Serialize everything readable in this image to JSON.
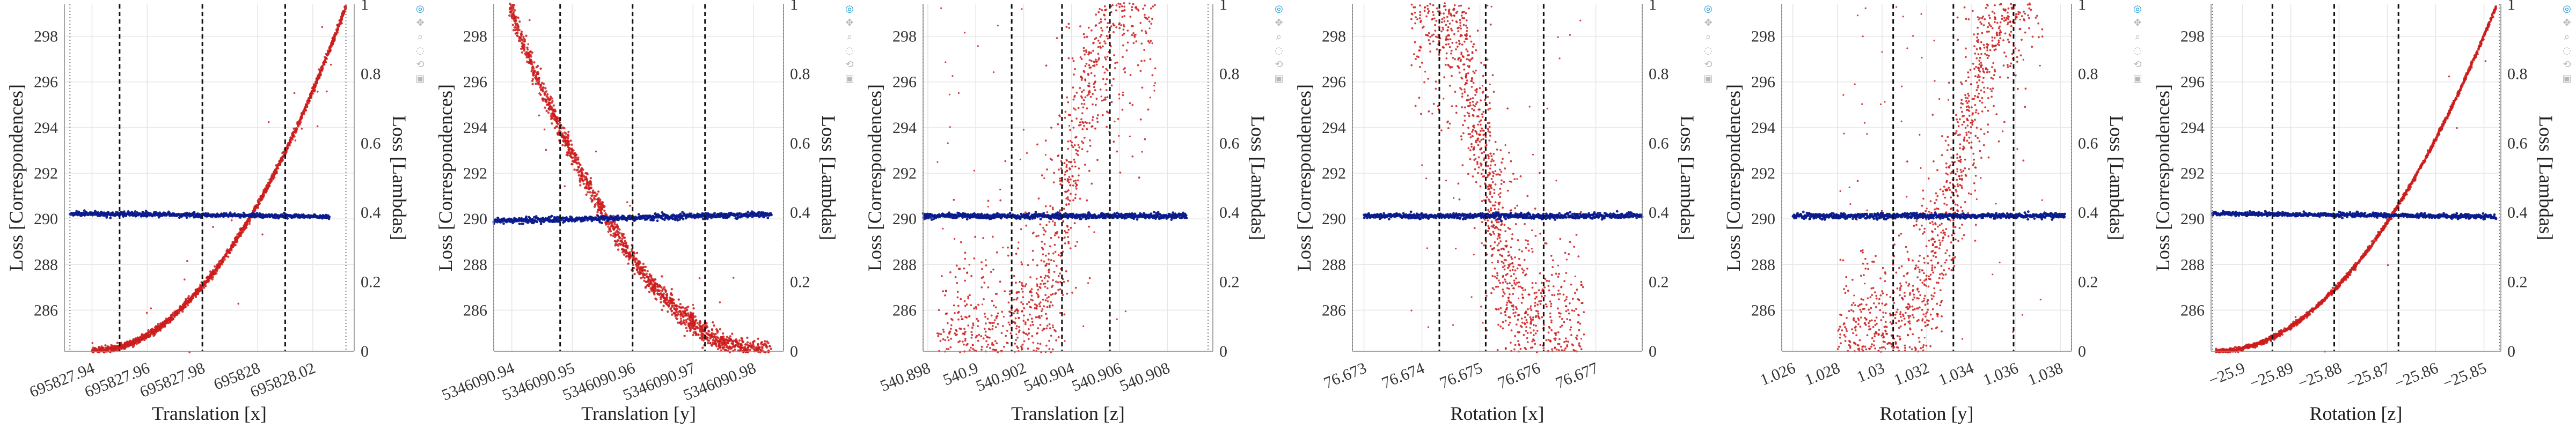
{
  "colors": {
    "correspondences": "#cc1c1c",
    "lambdas": "#0a1a8c",
    "plot_bg": "#ffffff",
    "grid": "#e6e6e6",
    "vline": "#111111",
    "border": "#888888"
  },
  "toolbar_icons": [
    "plotly-logo-icon",
    "pan-icon",
    "zoom-icon",
    "lasso-icon",
    "reset-icon",
    "camera-icon"
  ],
  "toolbar_glyphs": [
    "◎",
    "✥",
    "⌕",
    "◌",
    "⟲",
    "▣"
  ],
  "chart_data": [
    {
      "type": "scatter",
      "xlabel": "Translation [x]",
      "ylabel_left": "Loss [Correspondences]",
      "ylabel_right": "Loss [Lambdas]",
      "xlim": [
        695827.93,
        695828.035
      ],
      "xticks": [
        695827.94,
        695827.96,
        695827.98,
        695828,
        695828.02
      ],
      "xtick_labels": [
        "695827.94",
        "695827.96",
        "695827.98",
        "695828",
        "695828.02"
      ],
      "ylim_left": [
        284.2,
        299.4
      ],
      "yticks_left": [
        286,
        288,
        290,
        292,
        294,
        296,
        298
      ],
      "ylim_right": [
        0,
        1
      ],
      "yticks_right": [
        0,
        0.2,
        0.4,
        0.6,
        0.8,
        1
      ],
      "ytick_labels_right": [
        "0",
        "0.2",
        "0.4",
        "0.6",
        "0.8",
        "1"
      ],
      "vlines_dotted": [
        695827.932,
        695828.032
      ],
      "vlines_dashed": [
        695827.95,
        695827.98,
        695828.01
      ],
      "series": [
        {
          "role": "correspondences",
          "axis": "left",
          "shape": "parabola",
          "vertex_x": 695827.94,
          "vertex_y": 284.2,
          "x_end": 695828.032,
          "y_end": 299.3,
          "x_range": [
            695827.94,
            695828.032
          ],
          "spread": 0.08,
          "outliers": 25
        },
        {
          "role": "lambdas",
          "axis": "right",
          "shape": "flat",
          "y_start": 0.397,
          "y_end": 0.388,
          "x_range": [
            695827.932,
            695828.026
          ],
          "spread": 0.003
        }
      ]
    },
    {
      "type": "scatter",
      "xlabel": "Translation [y]",
      "ylabel_left": "Loss [Correspondences]",
      "ylabel_right": "Loss [Lambdas]",
      "xlim": [
        5346090.937,
        5346090.985
      ],
      "xticks": [
        5346090.94,
        5346090.95,
        5346090.96,
        5346090.97,
        5346090.98
      ],
      "xtick_labels": [
        "5346090.94",
        "5346090.95",
        "5346090.96",
        "5346090.97",
        "5346090.98"
      ],
      "ylim_left": [
        284.2,
        299.4
      ],
      "yticks_left": [
        286,
        288,
        290,
        292,
        294,
        296,
        298
      ],
      "ylim_right": [
        0,
        1
      ],
      "yticks_right": [
        0,
        0.2,
        0.4,
        0.6,
        0.8,
        1
      ],
      "ytick_labels_right": [
        "0",
        "0.2",
        "0.4",
        "0.6",
        "0.8",
        "1"
      ],
      "vlines_dotted": [
        5346090.937,
        5346090.985
      ],
      "vlines_dashed": [
        5346090.948,
        5346090.96,
        5346090.972
      ],
      "series": [
        {
          "role": "correspondences",
          "axis": "left",
          "shape": "parabola",
          "vertex_x": 5346090.982,
          "vertex_y": 284.2,
          "x_end": 5346090.9395,
          "y_end": 299.4,
          "x_range": [
            5346090.9395,
            5346090.983
          ],
          "spread": 0.25,
          "outliers": 20
        },
        {
          "role": "lambdas",
          "axis": "right",
          "shape": "flat",
          "y_start": 0.375,
          "y_end": 0.395,
          "x_range": [
            5346090.937,
            5346090.983
          ],
          "spread": 0.004
        }
      ]
    },
    {
      "type": "scatter",
      "xlabel": "Translation [z]",
      "ylabel_left": "Loss [Correspondences]",
      "ylabel_right": "Loss [Lambdas]",
      "xlim": [
        540.8978,
        540.9099
      ],
      "xticks": [
        540.898,
        540.9,
        540.902,
        540.904,
        540.906,
        540.908
      ],
      "xtick_labels": [
        "540.898",
        "540.9",
        "540.902",
        "540.904",
        "540.906",
        "540.908"
      ],
      "ylim_left": [
        284.2,
        299.4
      ],
      "yticks_left": [
        286,
        288,
        290,
        292,
        294,
        296,
        298
      ],
      "ylim_right": [
        0,
        1
      ],
      "yticks_right": [
        0,
        0.2,
        0.4,
        0.6,
        0.8,
        1
      ],
      "ytick_labels_right": [
        "0",
        "0.2",
        "0.4",
        "0.6",
        "0.8",
        "1"
      ],
      "vlines_dotted": [
        540.8978,
        540.9097
      ],
      "vlines_dashed": [
        540.9015,
        540.9036,
        540.9056
      ],
      "series": [
        {
          "role": "correspondences",
          "axis": "left",
          "shape": "sigmoid",
          "x0": 540.904,
          "k": 0.00075,
          "y_lo": 283.5,
          "y_hi": 301,
          "x_range": [
            540.8984,
            540.9075
          ],
          "spread": 2.2,
          "n": 1500
        },
        {
          "role": "lambdas",
          "axis": "right",
          "shape": "flat",
          "y_start": 0.39,
          "y_end": 0.39,
          "x_range": [
            540.8978,
            540.9088
          ],
          "spread": 0.004
        }
      ]
    },
    {
      "type": "scatter",
      "xlabel": "Rotation [x]",
      "ylabel_left": "Loss [Correspondences]",
      "ylabel_right": "Loss [Lambdas]",
      "xlim": [
        76.6728,
        76.6778
      ],
      "xticks": [
        76.673,
        76.674,
        76.675,
        76.676,
        76.677
      ],
      "xtick_labels": [
        "76.673",
        "76.674",
        "76.675",
        "76.676",
        "76.677"
      ],
      "ylim_left": [
        284.2,
        299.4
      ],
      "yticks_left": [
        286,
        288,
        290,
        292,
        294,
        296,
        298
      ],
      "ylim_right": [
        0,
        1
      ],
      "yticks_right": [
        0,
        0.2,
        0.4,
        0.6,
        0.8,
        1
      ],
      "ytick_labels_right": [
        "0",
        "0.2",
        "0.4",
        "0.6",
        "0.8",
        "1"
      ],
      "vlines_dotted": [
        76.6728,
        76.6778
      ],
      "vlines_dashed": [
        76.6743,
        76.6751,
        76.6761
      ],
      "series": [
        {
          "role": "correspondences",
          "axis": "left",
          "shape": "sigmoid_desc",
          "x0": 76.6751,
          "k": 0.0003,
          "y_lo": 283.5,
          "y_hi": 301,
          "x_range": [
            76.6738,
            76.6768
          ],
          "spread": 2.0,
          "n": 1500
        },
        {
          "role": "lambdas",
          "axis": "right",
          "shape": "flat",
          "y_start": 0.39,
          "y_end": 0.39,
          "x_range": [
            76.673,
            76.6778
          ],
          "spread": 0.004
        }
      ]
    },
    {
      "type": "scatter",
      "xlabel": "Rotation [y]",
      "ylabel_left": "Loss [Correspondences]",
      "ylabel_right": "Loss [Lambdas]",
      "xlim": [
        1.0255,
        1.0385
      ],
      "xticks": [
        1.026,
        1.028,
        1.03,
        1.032,
        1.034,
        1.036,
        1.038
      ],
      "xtick_labels": [
        "1.026",
        "1.028",
        "1.03",
        "1.032",
        "1.034",
        "1.036",
        "1.038"
      ],
      "ylim_left": [
        284.2,
        299.4
      ],
      "yticks_left": [
        286,
        288,
        290,
        292,
        294,
        296,
        298
      ],
      "ylim_right": [
        0,
        1
      ],
      "yticks_right": [
        0,
        0.2,
        0.4,
        0.6,
        0.8,
        1
      ],
      "ytick_labels_right": [
        "0",
        "0.2",
        "0.4",
        "0.6",
        "0.8",
        "1"
      ],
      "vlines_dotted": [
        1.0255,
        1.0385
      ],
      "vlines_dashed": [
        1.0305,
        1.0332,
        1.0359
      ],
      "series": [
        {
          "role": "correspondences",
          "axis": "left",
          "shape": "sigmoid",
          "x0": 1.0335,
          "k": 0.0011,
          "y_lo": 283.5,
          "y_hi": 302,
          "x_range": [
            1.028,
            1.0372
          ],
          "spread": 1.8,
          "n": 1500
        },
        {
          "role": "lambdas",
          "axis": "right",
          "shape": "flat",
          "y_start": 0.39,
          "y_end": 0.39,
          "x_range": [
            1.026,
            1.0382
          ],
          "spread": 0.004
        }
      ]
    },
    {
      "type": "scatter",
      "xlabel": "Rotation [z]",
      "ylabel_left": "Loss [Correspondences]",
      "ylabel_right": "Loss [Lambdas]",
      "xlim": [
        -25.9065,
        -25.8465
      ],
      "xticks": [
        -25.9,
        -25.89,
        -25.88,
        -25.87,
        -25.86,
        -25.85
      ],
      "xtick_labels": [
        "−25.9",
        "−25.89",
        "−25.88",
        "−25.87",
        "−25.86",
        "−25.85"
      ],
      "ylim_left": [
        284.2,
        299.4
      ],
      "yticks_left": [
        286,
        288,
        290,
        292,
        294,
        296,
        298
      ],
      "ylim_right": [
        0,
        1
      ],
      "yticks_right": [
        0,
        0.2,
        0.4,
        0.6,
        0.8,
        1
      ],
      "ytick_labels_right": [
        "0",
        "0.2",
        "0.4",
        "0.6",
        "0.8",
        "1"
      ],
      "vlines_dotted": [
        -25.9062,
        -25.8468
      ],
      "vlines_dashed": [
        -25.8938,
        -25.881,
        -25.8677
      ],
      "series": [
        {
          "role": "correspondences",
          "axis": "left",
          "shape": "parabola",
          "vertex_x": -25.9055,
          "vertex_y": 284.2,
          "x_end": -25.8475,
          "y_end": 299.3,
          "x_range": [
            -25.9055,
            -25.8475
          ],
          "spread": 0.05,
          "outliers": 8
        },
        {
          "role": "lambdas",
          "axis": "right",
          "shape": "flat",
          "y_start": 0.397,
          "y_end": 0.388,
          "x_range": [
            -25.9062,
            -25.8475
          ],
          "spread": 0.003
        }
      ]
    }
  ]
}
